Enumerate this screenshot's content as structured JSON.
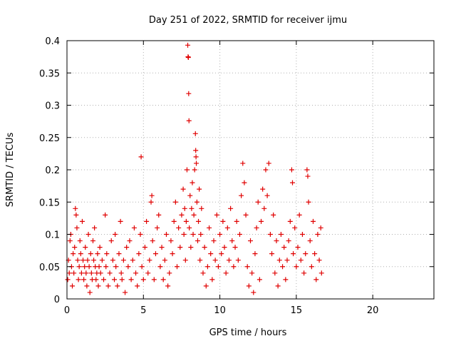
{
  "chart_data": {
    "type": "scatter",
    "title": "Day 251 of 2022, SRMTID for receiver ijmu",
    "xlabel": "GPS time / hours",
    "ylabel": "SRMTID / TECUs",
    "xlim": [
      0,
      24
    ],
    "ylim": [
      0,
      0.4
    ],
    "x_ticks": [
      0,
      5,
      10,
      15,
      20
    ],
    "x_tick_labels": [
      "0",
      "5",
      "10",
      "15",
      "20"
    ],
    "y_ticks": [
      0,
      0.05,
      0.1,
      0.15,
      0.2,
      0.25,
      0.3,
      0.35,
      0.4
    ],
    "y_tick_labels": [
      "0",
      "0.05",
      "0.1",
      "0.15",
      "0.2",
      "0.25",
      "0.3",
      "0.35",
      "0.4"
    ],
    "grid": true,
    "marker": "+",
    "marker_color": "#e00000",
    "series": [
      {
        "name": "SRMTID",
        "points": [
          [
            0.05,
            0.03
          ],
          [
            0.1,
            0.06
          ],
          [
            0.15,
            0.04
          ],
          [
            0.2,
            0.09
          ],
          [
            0.25,
            0.1
          ],
          [
            0.3,
            0.05
          ],
          [
            0.35,
            0.02
          ],
          [
            0.4,
            0.07
          ],
          [
            0.45,
            0.04
          ],
          [
            0.5,
            0.08
          ],
          [
            0.55,
            0.14
          ],
          [
            0.6,
            0.13
          ],
          [
            0.65,
            0.11
          ],
          [
            0.7,
            0.06
          ],
          [
            0.75,
            0.03
          ],
          [
            0.8,
            0.05
          ],
          [
            0.85,
            0.09
          ],
          [
            0.9,
            0.07
          ],
          [
            0.95,
            0.04
          ],
          [
            1.0,
            0.12
          ],
          [
            1.05,
            0.06
          ],
          [
            1.1,
            0.03
          ],
          [
            1.15,
            0.05
          ],
          [
            1.2,
            0.08
          ],
          [
            1.25,
            0.04
          ],
          [
            1.3,
            0.02
          ],
          [
            1.35,
            0.06
          ],
          [
            1.4,
            0.1
          ],
          [
            1.45,
            0.05
          ],
          [
            1.5,
            0.01
          ],
          [
            1.55,
            0.07
          ],
          [
            1.6,
            0.04
          ],
          [
            1.65,
            0.03
          ],
          [
            1.7,
            0.09
          ],
          [
            1.75,
            0.06
          ],
          [
            1.8,
            0.11
          ],
          [
            1.85,
            0.05
          ],
          [
            1.9,
            0.03
          ],
          [
            1.95,
            0.04
          ],
          [
            2.0,
            0.07
          ],
          [
            2.05,
            0.02
          ],
          [
            2.1,
            0.05
          ],
          [
            2.15,
            0.08
          ],
          [
            2.2,
            0.04
          ],
          [
            2.3,
            0.06
          ],
          [
            2.4,
            0.03
          ],
          [
            2.5,
            0.13
          ],
          [
            2.55,
            0.05
          ],
          [
            2.6,
            0.07
          ],
          [
            2.7,
            0.02
          ],
          [
            2.8,
            0.04
          ],
          [
            2.9,
            0.09
          ],
          [
            3.0,
            0.06
          ],
          [
            3.1,
            0.03
          ],
          [
            3.15,
            0.1
          ],
          [
            3.2,
            0.05
          ],
          [
            3.3,
            0.02
          ],
          [
            3.4,
            0.07
          ],
          [
            3.5,
            0.12
          ],
          [
            3.55,
            0.04
          ],
          [
            3.6,
            0.03
          ],
          [
            3.7,
            0.06
          ],
          [
            3.8,
            0.01
          ],
          [
            3.9,
            0.08
          ],
          [
            4.0,
            0.05
          ],
          [
            4.1,
            0.09
          ],
          [
            4.2,
            0.03
          ],
          [
            4.3,
            0.06
          ],
          [
            4.4,
            0.11
          ],
          [
            4.5,
            0.04
          ],
          [
            4.6,
            0.02
          ],
          [
            4.7,
            0.07
          ],
          [
            4.8,
            0.1
          ],
          [
            4.85,
            0.22
          ],
          [
            4.9,
            0.05
          ],
          [
            5.0,
            0.03
          ],
          [
            5.1,
            0.08
          ],
          [
            5.2,
            0.12
          ],
          [
            5.3,
            0.04
          ],
          [
            5.4,
            0.06
          ],
          [
            5.5,
            0.15
          ],
          [
            5.55,
            0.16
          ],
          [
            5.6,
            0.09
          ],
          [
            5.7,
            0.03
          ],
          [
            5.8,
            0.07
          ],
          [
            5.9,
            0.11
          ],
          [
            6.0,
            0.13
          ],
          [
            6.1,
            0.05
          ],
          [
            6.2,
            0.08
          ],
          [
            6.3,
            0.03
          ],
          [
            6.4,
            0.06
          ],
          [
            6.5,
            0.1
          ],
          [
            6.6,
            0.02
          ],
          [
            6.7,
            0.04
          ],
          [
            6.8,
            0.09
          ],
          [
            6.9,
            0.07
          ],
          [
            7.0,
            0.12
          ],
          [
            7.1,
            0.15
          ],
          [
            7.2,
            0.05
          ],
          [
            7.3,
            0.11
          ],
          [
            7.4,
            0.08
          ],
          [
            7.5,
            0.13
          ],
          [
            7.6,
            0.17
          ],
          [
            7.65,
            0.1
          ],
          [
            7.7,
            0.14
          ],
          [
            7.75,
            0.06
          ],
          [
            7.8,
            0.12
          ],
          [
            7.85,
            0.2
          ],
          [
            7.9,
            0.393
          ],
          [
            7.92,
            0.375
          ],
          [
            7.94,
            0.374
          ],
          [
            7.96,
            0.318
          ],
          [
            7.98,
            0.276
          ],
          [
            8.0,
            0.11
          ],
          [
            8.05,
            0.16
          ],
          [
            8.1,
            0.08
          ],
          [
            8.15,
            0.14
          ],
          [
            8.2,
            0.18
          ],
          [
            8.25,
            0.1
          ],
          [
            8.3,
            0.13
          ],
          [
            8.35,
            0.2
          ],
          [
            8.4,
            0.256
          ],
          [
            8.42,
            0.23
          ],
          [
            8.44,
            0.22
          ],
          [
            8.46,
            0.21
          ],
          [
            8.5,
            0.15
          ],
          [
            8.55,
            0.09
          ],
          [
            8.6,
            0.12
          ],
          [
            8.65,
            0.17
          ],
          [
            8.7,
            0.06
          ],
          [
            8.75,
            0.1
          ],
          [
            8.8,
            0.14
          ],
          [
            8.9,
            0.04
          ],
          [
            9.0,
            0.08
          ],
          [
            9.1,
            0.02
          ],
          [
            9.2,
            0.05
          ],
          [
            9.3,
            0.11
          ],
          [
            9.4,
            0.07
          ],
          [
            9.5,
            0.03
          ],
          [
            9.6,
            0.09
          ],
          [
            9.7,
            0.06
          ],
          [
            9.8,
            0.13
          ],
          [
            9.9,
            0.05
          ],
          [
            10.0,
            0.1
          ],
          [
            10.1,
            0.07
          ],
          [
            10.2,
            0.12
          ],
          [
            10.3,
            0.08
          ],
          [
            10.4,
            0.04
          ],
          [
            10.5,
            0.11
          ],
          [
            10.6,
            0.06
          ],
          [
            10.7,
            0.14
          ],
          [
            10.8,
            0.09
          ],
          [
            10.9,
            0.05
          ],
          [
            11.0,
            0.08
          ],
          [
            11.1,
            0.12
          ],
          [
            11.2,
            0.06
          ],
          [
            11.3,
            0.1
          ],
          [
            11.4,
            0.16
          ],
          [
            11.5,
            0.21
          ],
          [
            11.6,
            0.18
          ],
          [
            11.7,
            0.13
          ],
          [
            11.8,
            0.05
          ],
          [
            11.9,
            0.02
          ],
          [
            12.0,
            0.09
          ],
          [
            12.1,
            0.04
          ],
          [
            12.2,
            0.01
          ],
          [
            12.3,
            0.07
          ],
          [
            12.4,
            0.11
          ],
          [
            12.5,
            0.15
          ],
          [
            12.6,
            0.03
          ],
          [
            12.7,
            0.12
          ],
          [
            12.8,
            0.17
          ],
          [
            12.9,
            0.14
          ],
          [
            13.0,
            0.2
          ],
          [
            13.1,
            0.16
          ],
          [
            13.2,
            0.21
          ],
          [
            13.3,
            0.1
          ],
          [
            13.4,
            0.07
          ],
          [
            13.5,
            0.13
          ],
          [
            13.6,
            0.04
          ],
          [
            13.7,
            0.09
          ],
          [
            13.8,
            0.02
          ],
          [
            13.9,
            0.06
          ],
          [
            14.0,
            0.1
          ],
          [
            14.1,
            0.05
          ],
          [
            14.2,
            0.08
          ],
          [
            14.3,
            0.03
          ],
          [
            14.4,
            0.06
          ],
          [
            14.5,
            0.09
          ],
          [
            14.6,
            0.12
          ],
          [
            14.7,
            0.2
          ],
          [
            14.75,
            0.18
          ],
          [
            14.8,
            0.07
          ],
          [
            14.9,
            0.11
          ],
          [
            15.0,
            0.05
          ],
          [
            15.1,
            0.08
          ],
          [
            15.2,
            0.13
          ],
          [
            15.3,
            0.06
          ],
          [
            15.4,
            0.1
          ],
          [
            15.5,
            0.04
          ],
          [
            15.6,
            0.07
          ],
          [
            15.7,
            0.2
          ],
          [
            15.75,
            0.19
          ],
          [
            15.8,
            0.15
          ],
          [
            15.9,
            0.09
          ],
          [
            16.0,
            0.05
          ],
          [
            16.1,
            0.12
          ],
          [
            16.2,
            0.07
          ],
          [
            16.3,
            0.03
          ],
          [
            16.4,
            0.1
          ],
          [
            16.5,
            0.06
          ],
          [
            16.6,
            0.11
          ],
          [
            16.65,
            0.04
          ]
        ]
      }
    ]
  }
}
